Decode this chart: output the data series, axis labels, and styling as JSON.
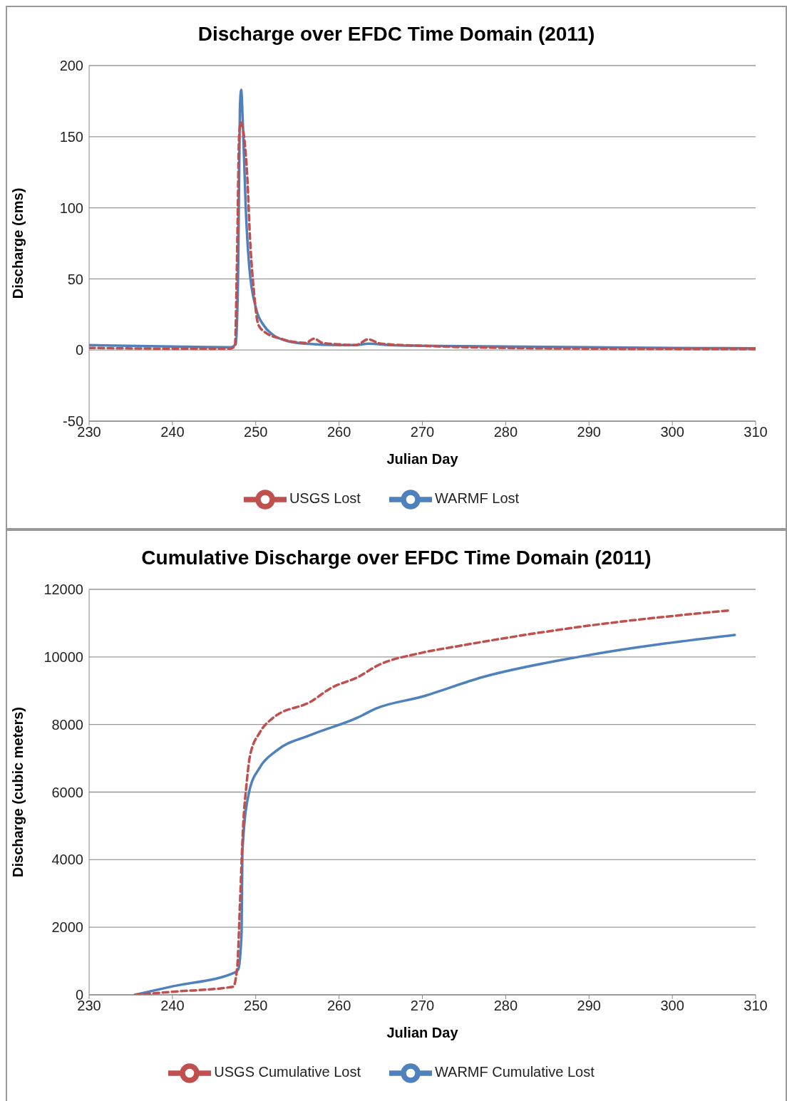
{
  "chart_data": [
    {
      "type": "line",
      "title": "Discharge over EFDC Time Domain (2011)",
      "xlabel": "Julian Day",
      "ylabel": "Discharge (cms)",
      "xlim": [
        230,
        310
      ],
      "xticks": [
        230,
        240,
        250,
        260,
        270,
        280,
        290,
        300,
        310
      ],
      "ylim": [
        -50,
        200
      ],
      "yticks": [
        -50,
        0,
        50,
        100,
        150,
        200
      ],
      "grid": "y",
      "legend": "bottom",
      "series": [
        {
          "name": "WARMF Lost",
          "color": "#4f81bd",
          "line_style": "solid",
          "x": [
            230,
            240,
            247,
            247.6,
            247.9,
            248.1,
            248.25,
            248.45,
            248.8,
            249.2,
            250,
            251,
            252,
            254,
            256,
            260,
            262,
            263.5,
            266,
            270,
            280,
            290,
            300,
            310
          ],
          "values": [
            3.5,
            2.5,
            2,
            4,
            60,
            170,
            183,
            160,
            100,
            60,
            30,
            17,
            11,
            6,
            4.5,
            3.5,
            3.5,
            4.5,
            3.5,
            3,
            2.5,
            2,
            1.5,
            1.2
          ]
        },
        {
          "name": "USGS Lost",
          "color": "#c0504d",
          "line_style": "dashed",
          "x": [
            230,
            240,
            247,
            247.5,
            247.8,
            248,
            248.2,
            248.6,
            249,
            249.3,
            249.8,
            250.3,
            251,
            253,
            256,
            257,
            258,
            260,
            262,
            263.5,
            265,
            270,
            280,
            290,
            300,
            310
          ],
          "values": [
            1.5,
            1,
            1,
            3,
            80,
            150,
            160,
            150,
            120,
            80,
            40,
            18,
            13,
            8,
            5,
            8,
            5,
            4,
            3.5,
            7.5,
            4.5,
            3,
            1.5,
            1,
            0.8,
            0.7
          ]
        }
      ]
    },
    {
      "type": "line",
      "title": "Cumulative Discharge over EFDC Time Domain (2011)",
      "xlabel": "Julian Day",
      "ylabel": "Discharge (cubic meters)",
      "xlim": [
        230,
        310
      ],
      "xticks": [
        230,
        240,
        250,
        260,
        270,
        280,
        290,
        300,
        310
      ],
      "ylim": [
        0,
        12000
      ],
      "yticks": [
        0,
        2000,
        4000,
        6000,
        8000,
        10000,
        12000
      ],
      "grid": "y",
      "legend": "bottom",
      "series": [
        {
          "name": "WARMF Cumulative Lost",
          "color": "#4f81bd",
          "line_style": "solid",
          "x": [
            235.5,
            240,
            247.5,
            247.9,
            248.3,
            248.4,
            249.2,
            250.5,
            252.4,
            256.7,
            262.2,
            264.4,
            269.9,
            277.2,
            289.2,
            307.5
          ],
          "values": [
            0,
            250,
            660,
            750,
            1830,
            4240,
            6000,
            6730,
            7210,
            7700,
            8200,
            8470,
            8820,
            9400,
            10020,
            10650
          ]
        },
        {
          "name": "USGS Cumulative Lost",
          "color": "#c0504d",
          "line_style": "dashed",
          "x": [
            235.5,
            240,
            247.3,
            247.8,
            248.1,
            248.5,
            248.9,
            249.3,
            250.5,
            252,
            256.7,
            258.9,
            262.4,
            264.5,
            269.9,
            274.3,
            289.2,
            307
          ],
          "values": [
            0,
            90,
            240,
            880,
            2650,
            5050,
            6240,
            7060,
            7770,
            8180,
            8690,
            9060,
            9420,
            9730,
            10120,
            10320,
            10900,
            11380
          ]
        }
      ]
    }
  ]
}
